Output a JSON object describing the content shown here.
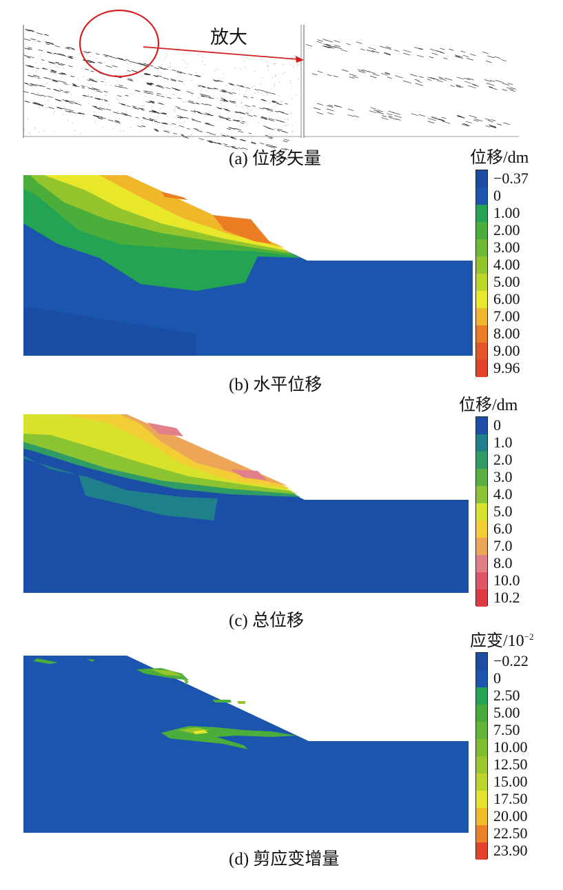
{
  "panel_a": {
    "caption": "(a)  位移矢量",
    "zoom_label": "放大"
  },
  "panel_b": {
    "caption": "(b)  水平位移",
    "legend_title": "位移/dm",
    "legend": [
      {
        "label": "−0.37",
        "color": "#1a4ea5"
      },
      {
        "label": "0",
        "color": "#1b55ae"
      },
      {
        "label": "1.00",
        "color": "#23a353"
      },
      {
        "label": "2.00",
        "color": "#4cae3a"
      },
      {
        "label": "3.00",
        "color": "#6fba33"
      },
      {
        "label": "4.00",
        "color": "#94c52d"
      },
      {
        "label": "5.00",
        "color": "#bcd62a"
      },
      {
        "label": "6.00",
        "color": "#e9e72a"
      },
      {
        "label": "7.00",
        "color": "#f1b72a"
      },
      {
        "label": "8.00",
        "color": "#eb7e25"
      },
      {
        "label": "9.00",
        "color": "#e65528"
      },
      {
        "label": "9.96",
        "color": "#e2432a"
      }
    ]
  },
  "panel_c": {
    "caption": "(c)  总位移",
    "legend_title": "位移/dm",
    "legend": [
      {
        "label": "0",
        "color": "#1b4ea6"
      },
      {
        "label": "1.0",
        "color": "#1f7f8a"
      },
      {
        "label": "2.0",
        "color": "#2e9c64"
      },
      {
        "label": "3.0",
        "color": "#58b13f"
      },
      {
        "label": "4.0",
        "color": "#8cc431"
      },
      {
        "label": "5.0",
        "color": "#d8e22b"
      },
      {
        "label": "6.0",
        "color": "#f3cd36"
      },
      {
        "label": "7.0",
        "color": "#eda558"
      },
      {
        "label": "8.0",
        "color": "#e2808a"
      },
      {
        "label": "10.0",
        "color": "#dd5566"
      },
      {
        "label": "10.2",
        "color": "#dd3a45"
      }
    ]
  },
  "panel_d": {
    "caption": "(d)  剪应变增量",
    "legend_title_base": "应变/10",
    "legend_title_exp": "−2",
    "legend": [
      {
        "label": "−0.22",
        "color": "#1a4ea5"
      },
      {
        "label": "0",
        "color": "#1b55ae"
      },
      {
        "label": "2.50",
        "color": "#23a353"
      },
      {
        "label": "5.00",
        "color": "#45ac3b"
      },
      {
        "label": "7.50",
        "color": "#62b536"
      },
      {
        "label": "10.00",
        "color": "#7fbe31"
      },
      {
        "label": "12.50",
        "color": "#9cc72e"
      },
      {
        "label": "15.00",
        "color": "#bdd52b"
      },
      {
        "label": "17.50",
        "color": "#e2e32a"
      },
      {
        "label": "20.00",
        "color": "#f1bb2a"
      },
      {
        "label": "22.50",
        "color": "#eb8226"
      },
      {
        "label": "23.90",
        "color": "#e2432a"
      }
    ]
  }
}
